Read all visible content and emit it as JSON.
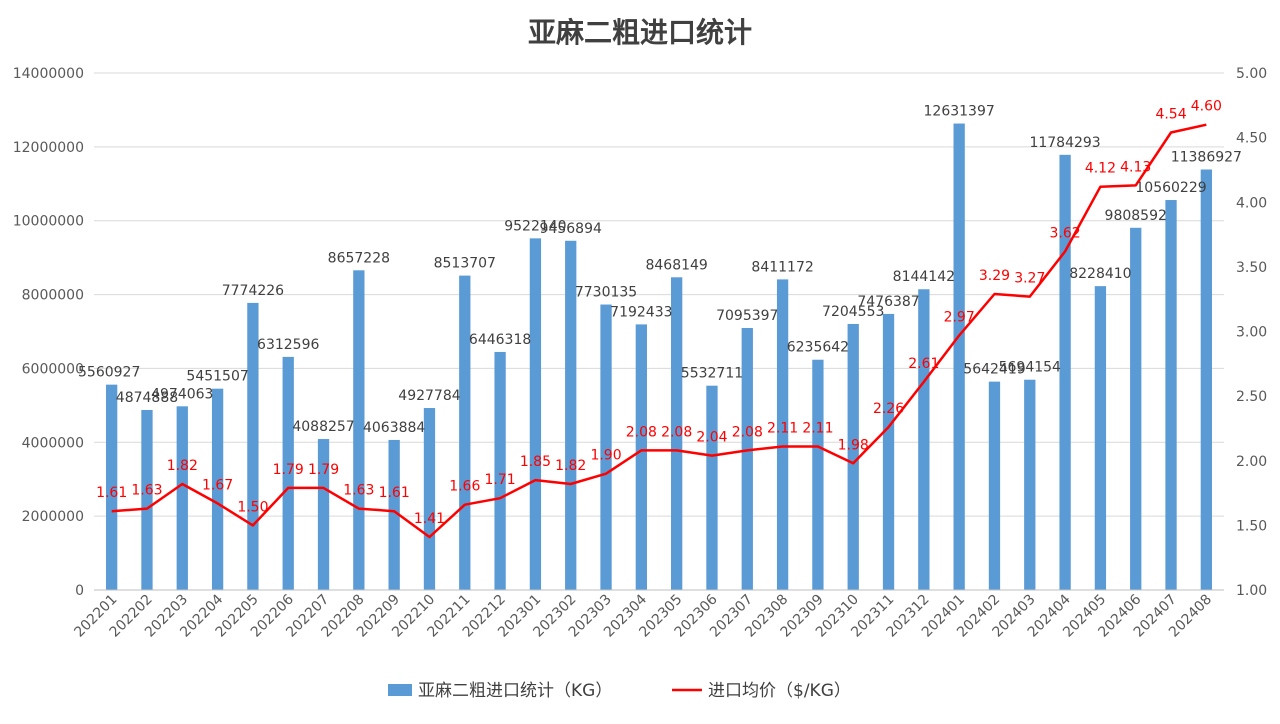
{
  "chart_data": {
    "type": "bar+line",
    "title": "亚麻二粗进口统计",
    "categories": [
      "202201",
      "202202",
      "202203",
      "202204",
      "202205",
      "202206",
      "202207",
      "202208",
      "202209",
      "202210",
      "202211",
      "202212",
      "202301",
      "202302",
      "202303",
      "202304",
      "202305",
      "202306",
      "202307",
      "202308",
      "202309",
      "202310",
      "202311",
      "202312",
      "202401",
      "202402",
      "202403",
      "202404",
      "202405",
      "202406",
      "202407",
      "202408"
    ],
    "series": [
      {
        "name": "亚麻二粗进口统计（KG）",
        "type": "bar",
        "axis": "left",
        "color": "#5b9bd5",
        "values": [
          5560927,
          4874888,
          4974063,
          5451507,
          7774226,
          6312596,
          4088257,
          8657228,
          4063884,
          4927784,
          8513707,
          6446318,
          9522140,
          9456894,
          7730135,
          7192433,
          8468149,
          5532711,
          7095397,
          8411172,
          6235642,
          7204553,
          7476387,
          8144142,
          12631397,
          5642419,
          5694154,
          11784293,
          8228410,
          9808592,
          10560229,
          11386927
        ]
      },
      {
        "name": "进口均价（$/KG）",
        "type": "line",
        "axis": "right",
        "color": "#ff0000",
        "values": [
          1.61,
          1.63,
          1.82,
          1.67,
          1.5,
          1.79,
          1.79,
          1.63,
          1.61,
          1.41,
          1.66,
          1.71,
          1.85,
          1.82,
          1.9,
          2.08,
          2.08,
          2.04,
          2.08,
          2.11,
          2.11,
          1.98,
          2.26,
          2.61,
          2.97,
          3.29,
          3.27,
          3.62,
          4.12,
          4.13,
          4.54,
          4.6
        ],
        "labels": [
          "1.61",
          "1.63",
          "1.82",
          "1.67",
          "1.50",
          "1.79",
          "1.79",
          "1.63",
          "1.61",
          "1.41",
          "1.66",
          "1.71",
          "1.85",
          "1.82",
          "1.90",
          "2.08",
          "2.08",
          "2.04",
          "2.08",
          "2.11",
          "2.11",
          "1.98",
          "2.26",
          "2.61",
          "2.97",
          "3.29",
          "3.27",
          "3.62",
          "4.12",
          "4.13",
          "4.54",
          "4.60"
        ]
      }
    ],
    "left_axis": {
      "min": 0,
      "max": 14000000,
      "ticks": [
        0,
        2000000,
        4000000,
        6000000,
        8000000,
        10000000,
        12000000,
        14000000
      ]
    },
    "right_axis": {
      "min": 1.0,
      "max": 5.0,
      "ticks": [
        "1.00",
        "1.50",
        "2.00",
        "2.50",
        "3.00",
        "3.50",
        "4.00",
        "4.50",
        "5.00"
      ]
    },
    "grid": true,
    "legend_position": "bottom"
  }
}
